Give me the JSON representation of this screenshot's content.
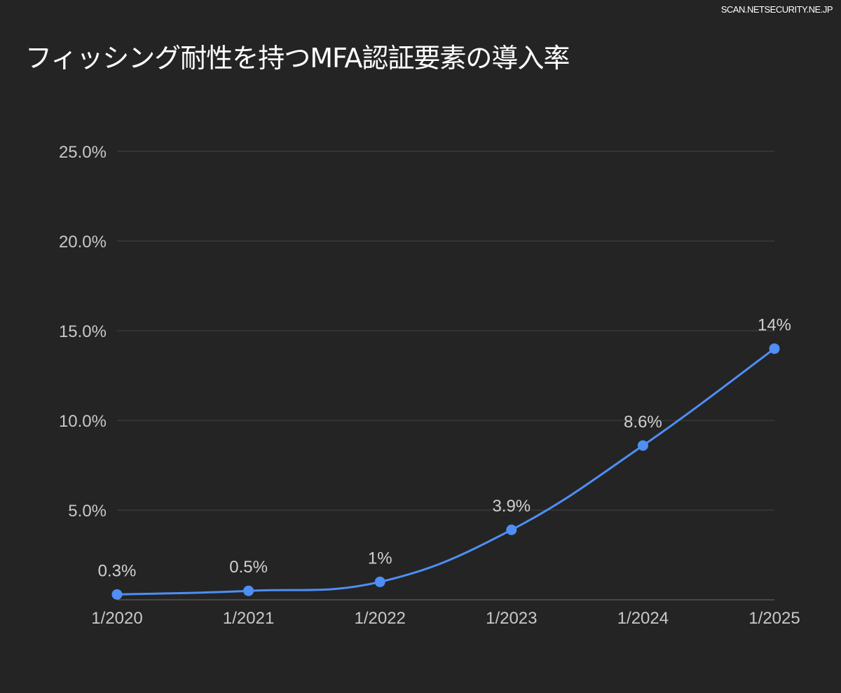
{
  "watermark": "SCAN.NETSECURITY.NE.JP",
  "chart_data": {
    "type": "line",
    "title": "フィッシング耐性を持つMFA認証要素の導入率",
    "xlabel": "",
    "ylabel": "",
    "categories": [
      "1/2020",
      "1/2021",
      "1/2022",
      "1/2023",
      "1/2024",
      "1/2025"
    ],
    "series": [
      {
        "name": "導入率",
        "values": [
          0.3,
          0.5,
          1,
          3.9,
          8.6,
          14
        ],
        "data_labels": [
          "0.3%",
          "0.5%",
          "1%",
          "3.9%",
          "8.6%",
          "14%"
        ]
      }
    ],
    "ylim": [
      0,
      25
    ],
    "yticks": [
      5,
      10,
      15,
      20,
      25
    ],
    "ytick_labels": [
      "5.0%",
      "10.0%",
      "15.0%",
      "20.0%",
      "25.0%"
    ],
    "grid": true,
    "legend": "none",
    "colors": {
      "line": "#4e8ef5",
      "grid": "#444444",
      "background": "#242424"
    }
  }
}
